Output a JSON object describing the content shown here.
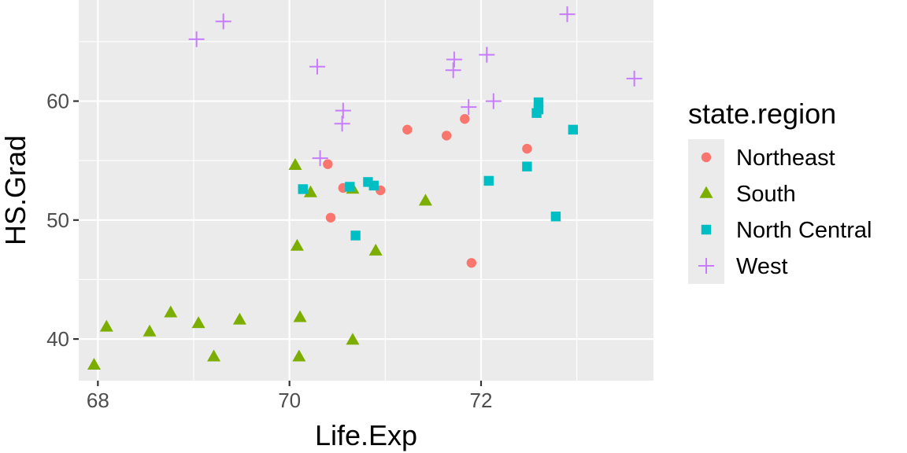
{
  "chart_data": {
    "type": "scatter",
    "xlabel": "Life.Exp",
    "ylabel": "HS.Grad",
    "xlim": [
      67.8,
      73.8
    ],
    "ylim": [
      36.5,
      68.5
    ],
    "x_ticks": [
      68,
      70,
      72
    ],
    "y_ticks": [
      40,
      50,
      60
    ],
    "x_tick_labels": [
      "68",
      "70",
      "72"
    ],
    "y_tick_labels": [
      "40",
      "50",
      "60"
    ],
    "grid": true,
    "legend": {
      "title": "state.region",
      "position": "right"
    },
    "series": [
      {
        "name": "Northeast",
        "shape": "circle",
        "color": "#F8766D",
        "points": [
          [
            70.4,
            54.7
          ],
          [
            70.56,
            52.7
          ],
          [
            70.43,
            50.2
          ],
          [
            70.95,
            52.5
          ],
          [
            71.23,
            57.6
          ],
          [
            71.64,
            57.1
          ],
          [
            71.83,
            58.5
          ],
          [
            71.9,
            46.4
          ],
          [
            72.48,
            56.0
          ]
        ]
      },
      {
        "name": "South",
        "shape": "triangle",
        "color": "#7CAE00",
        "points": [
          [
            67.96,
            37.8
          ],
          [
            68.09,
            41.0
          ],
          [
            68.54,
            40.6
          ],
          [
            68.76,
            42.2
          ],
          [
            69.05,
            41.3
          ],
          [
            69.21,
            38.5
          ],
          [
            69.48,
            41.6
          ],
          [
            70.06,
            54.6
          ],
          [
            70.08,
            47.8
          ],
          [
            70.1,
            38.5
          ],
          [
            70.11,
            41.8
          ],
          [
            70.22,
            52.3
          ],
          [
            70.66,
            52.6
          ],
          [
            70.66,
            39.9
          ],
          [
            70.9,
            47.4
          ],
          [
            71.42,
            51.6
          ]
        ]
      },
      {
        "name": "North Central",
        "shape": "square",
        "color": "#00BFC4",
        "points": [
          [
            70.14,
            52.6
          ],
          [
            70.63,
            52.8
          ],
          [
            70.69,
            48.7
          ],
          [
            70.82,
            53.2
          ],
          [
            70.88,
            52.9
          ],
          [
            72.08,
            53.3
          ],
          [
            72.48,
            54.5
          ],
          [
            72.58,
            59.0
          ],
          [
            72.6,
            59.9
          ],
          [
            72.6,
            59.3
          ],
          [
            72.78,
            50.3
          ],
          [
            72.96,
            57.6
          ]
        ]
      },
      {
        "name": "West",
        "shape": "plus",
        "color": "#C77CFF",
        "points": [
          [
            69.03,
            65.2
          ],
          [
            69.31,
            66.7
          ],
          [
            70.29,
            62.9
          ],
          [
            70.32,
            55.2
          ],
          [
            70.55,
            58.1
          ],
          [
            70.56,
            59.2
          ],
          [
            71.71,
            62.6
          ],
          [
            71.72,
            63.5
          ],
          [
            71.87,
            59.5
          ],
          [
            72.06,
            63.9
          ],
          [
            72.13,
            60.0
          ],
          [
            72.9,
            67.3
          ],
          [
            73.6,
            61.9
          ]
        ]
      }
    ]
  }
}
